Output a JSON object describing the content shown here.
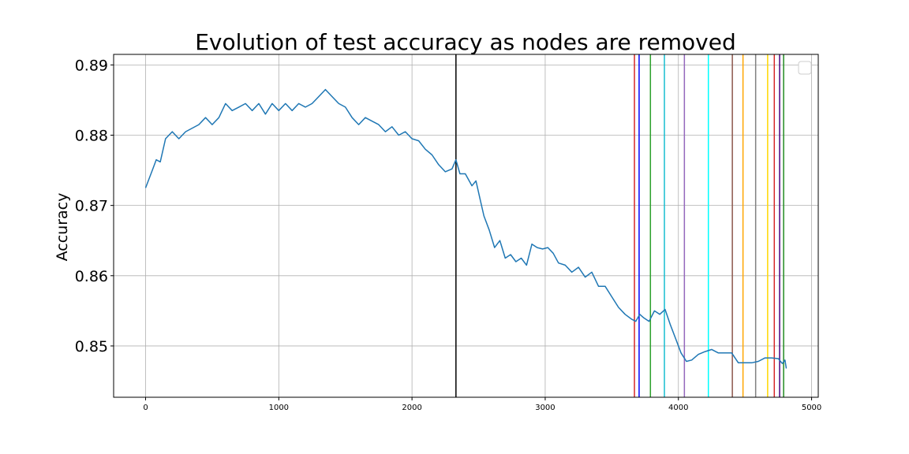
{
  "chart_data": {
    "type": "line",
    "title": "Evolution of test accuracy as nodes are removed",
    "xlabel": "",
    "ylabel": "Accuracy",
    "xlim": [
      -240,
      5050
    ],
    "ylim": [
      0.8427,
      0.8915
    ],
    "x_ticks": [
      0,
      1000,
      2000,
      3000,
      4000,
      5000
    ],
    "x_tick_labels": [
      "0",
      "1000",
      "2000",
      "3000",
      "4000",
      "5000"
    ],
    "y_ticks": [
      0.85,
      0.86,
      0.87,
      0.88,
      0.89
    ],
    "y_tick_labels": [
      "0.85",
      "0.86",
      "0.87",
      "0.88",
      "0.89"
    ],
    "grid": true,
    "legend": "top-right (empty)",
    "series": [
      {
        "color": "#1f77b4",
        "x": [
          0,
          20,
          50,
          80,
          110,
          150,
          200,
          250,
          300,
          350,
          400,
          450,
          500,
          550,
          600,
          650,
          700,
          750,
          800,
          850,
          900,
          950,
          1000,
          1050,
          1100,
          1150,
          1200,
          1250,
          1300,
          1350,
          1400,
          1450,
          1500,
          1550,
          1600,
          1650,
          1700,
          1750,
          1800,
          1850,
          1900,
          1950,
          2000,
          2050,
          2100,
          2150,
          2200,
          2250,
          2300,
          2330,
          2360,
          2400,
          2450,
          2480,
          2510,
          2540,
          2580,
          2620,
          2660,
          2700,
          2740,
          2780,
          2820,
          2860,
          2900,
          2940,
          2980,
          3020,
          3060,
          3100,
          3150,
          3200,
          3250,
          3300,
          3350,
          3400,
          3450,
          3500,
          3550,
          3600,
          3650,
          3680,
          3710,
          3740,
          3780,
          3820,
          3860,
          3900,
          3940,
          3980,
          4020,
          4060,
          4100,
          4150,
          4200,
          4250,
          4300,
          4350,
          4400,
          4450,
          4500,
          4550,
          4600,
          4650,
          4700,
          4750,
          4780,
          4800,
          4810
        ],
        "y": [
          0.8725,
          0.8735,
          0.875,
          0.8765,
          0.8762,
          0.8795,
          0.8805,
          0.8795,
          0.8805,
          0.881,
          0.8815,
          0.8825,
          0.8815,
          0.8825,
          0.8845,
          0.8835,
          0.884,
          0.8845,
          0.8835,
          0.8845,
          0.883,
          0.8845,
          0.8835,
          0.8845,
          0.8835,
          0.8845,
          0.884,
          0.8845,
          0.8855,
          0.8865,
          0.8855,
          0.8845,
          0.884,
          0.8825,
          0.8815,
          0.8825,
          0.882,
          0.8815,
          0.8805,
          0.8812,
          0.88,
          0.8805,
          0.8795,
          0.8792,
          0.878,
          0.8772,
          0.8758,
          0.8748,
          0.8752,
          0.8765,
          0.8745,
          0.8745,
          0.8728,
          0.8735,
          0.871,
          0.8685,
          0.8665,
          0.864,
          0.865,
          0.8625,
          0.863,
          0.862,
          0.8625,
          0.8615,
          0.8645,
          0.864,
          0.8638,
          0.864,
          0.8632,
          0.8618,
          0.8615,
          0.8605,
          0.8612,
          0.8598,
          0.8605,
          0.8585,
          0.8585,
          0.857,
          0.8555,
          0.8545,
          0.8538,
          0.8535,
          0.8545,
          0.854,
          0.8535,
          0.855,
          0.8545,
          0.8552,
          0.853,
          0.851,
          0.849,
          0.8478,
          0.848,
          0.8488,
          0.8492,
          0.8495,
          0.849,
          0.849,
          0.849,
          0.8476,
          0.8476,
          0.8476,
          0.8478,
          0.8483,
          0.8483,
          0.8482,
          0.8475,
          0.848,
          0.8468
        ]
      }
    ],
    "vlines": [
      {
        "x": 2330,
        "color": "#000000"
      },
      {
        "x": 3670,
        "color": "#d62728"
      },
      {
        "x": 3705,
        "color": "#0000ff"
      },
      {
        "x": 3790,
        "color": "#2ca02c"
      },
      {
        "x": 3895,
        "color": "#17becf"
      },
      {
        "x": 4045,
        "color": "#9467bd"
      },
      {
        "x": 4225,
        "color": "#00ffff"
      },
      {
        "x": 4405,
        "color": "#8c564b"
      },
      {
        "x": 4485,
        "color": "#ffa500"
      },
      {
        "x": 4580,
        "color": "#808080"
      },
      {
        "x": 4670,
        "color": "#ffd700"
      },
      {
        "x": 4720,
        "color": "#d62728"
      },
      {
        "x": 4760,
        "color": "#4b0082"
      },
      {
        "x": 4790,
        "color": "#228b22"
      }
    ]
  }
}
